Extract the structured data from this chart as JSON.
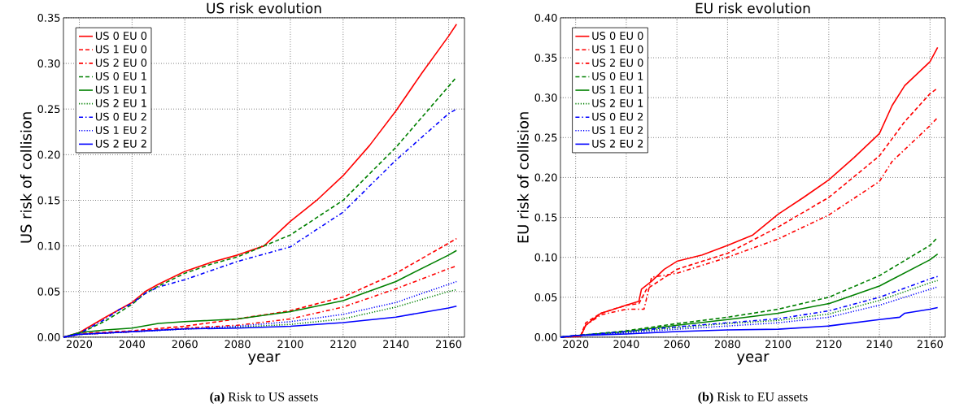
{
  "chart_data": [
    {
      "type": "line",
      "title": "US risk evolution",
      "xlabel": "year",
      "ylabel": "US risk of collision",
      "xlim": [
        2014,
        2166
      ],
      "ylim": [
        0,
        0.35
      ],
      "xticks": [
        2020,
        2040,
        2060,
        2080,
        2100,
        2120,
        2140,
        2160
      ],
      "yticks": [
        {
          "value": 0,
          "label": "0.00"
        },
        0.05,
        {
          "value": 0.1,
          "label": "0.10"
        },
        0.15,
        {
          "value": 0.2,
          "label": "0.20"
        },
        0.25,
        {
          "value": 0.3,
          "label": "0.30"
        },
        0.35
      ],
      "grid": true,
      "legend": "top left",
      "annotations": [
        "**(a)** Risk to US assets"
      ],
      "series": [
        {
          "name": "US 0 EU 0",
          "color": "#ff0000",
          "line_style": "solid",
          "x": [
            2014,
            2020,
            2030,
            2035,
            2040,
            2045,
            2050,
            2060,
            2070,
            2080,
            2090,
            2100,
            2110,
            2120,
            2130,
            2140,
            2150,
            2160,
            2163
          ],
          "values": [
            0,
            0.005,
            0.022,
            0.03,
            0.038,
            0.05,
            0.058,
            0.072,
            0.082,
            0.09,
            0.1,
            0.127,
            0.15,
            0.177,
            0.21,
            0.248,
            0.29,
            0.33,
            0.343
          ]
        },
        {
          "name": "US 1 EU 0",
          "color": "#ff0000",
          "line_style": "dashed",
          "x": [
            2014,
            2020,
            2040,
            2060,
            2080,
            2100,
            2120,
            2140,
            2160,
            2163
          ],
          "values": [
            0,
            0.004,
            0.007,
            0.012,
            0.02,
            0.029,
            0.044,
            0.07,
            0.103,
            0.108
          ]
        },
        {
          "name": "US 2 EU 0",
          "color": "#ff0000",
          "line_style": "dashdot",
          "x": [
            2014,
            2020,
            2040,
            2060,
            2080,
            2100,
            2120,
            2140,
            2160,
            2163
          ],
          "values": [
            0,
            0.003,
            0.006,
            0.01,
            0.013,
            0.02,
            0.033,
            0.053,
            0.075,
            0.078
          ]
        },
        {
          "name": "US 0 EU 1",
          "color": "#008000",
          "line_style": "dashed",
          "x": [
            2014,
            2020,
            2030,
            2035,
            2040,
            2045,
            2050,
            2060,
            2070,
            2080,
            2100,
            2120,
            2140,
            2160,
            2163
          ],
          "values": [
            0,
            0.004,
            0.018,
            0.027,
            0.036,
            0.048,
            0.056,
            0.07,
            0.08,
            0.088,
            0.112,
            0.15,
            0.208,
            0.275,
            0.285
          ]
        },
        {
          "name": "US 1 EU 1",
          "color": "#008000",
          "line_style": "solid",
          "x": [
            2014,
            2020,
            2030,
            2040,
            2050,
            2060,
            2080,
            2100,
            2120,
            2140,
            2160,
            2163
          ],
          "values": [
            0,
            0.005,
            0.008,
            0.01,
            0.015,
            0.017,
            0.02,
            0.028,
            0.04,
            0.061,
            0.09,
            0.095
          ]
        },
        {
          "name": "US 2 EU 1",
          "color": "#008000",
          "line_style": "dotted",
          "x": [
            2014,
            2020,
            2040,
            2060,
            2080,
            2100,
            2120,
            2140,
            2160,
            2163
          ],
          "values": [
            0,
            0.003,
            0.006,
            0.009,
            0.011,
            0.014,
            0.02,
            0.033,
            0.05,
            0.052
          ]
        },
        {
          "name": "US 0 EU 2",
          "color": "#0000ff",
          "line_style": "dashdot",
          "x": [
            2014,
            2020,
            2030,
            2035,
            2040,
            2045,
            2050,
            2060,
            2080,
            2100,
            2120,
            2140,
            2160,
            2163
          ],
          "values": [
            0,
            0.004,
            0.02,
            0.03,
            0.037,
            0.048,
            0.055,
            0.063,
            0.083,
            0.099,
            0.137,
            0.194,
            0.245,
            0.25
          ]
        },
        {
          "name": "US 1 EU 2",
          "color": "#0000ff",
          "line_style": "dotted",
          "x": [
            2014,
            2020,
            2040,
            2060,
            2080,
            2100,
            2120,
            2140,
            2160,
            2163
          ],
          "values": [
            0,
            0.003,
            0.006,
            0.009,
            0.012,
            0.017,
            0.025,
            0.038,
            0.058,
            0.061
          ]
        },
        {
          "name": "US 2 EU 2",
          "color": "#0000ff",
          "line_style": "solid",
          "x": [
            2014,
            2020,
            2040,
            2060,
            2080,
            2100,
            2120,
            2140,
            2160,
            2163
          ],
          "values": [
            0,
            0.003,
            0.006,
            0.009,
            0.01,
            0.012,
            0.016,
            0.022,
            0.032,
            0.034
          ]
        }
      ]
    },
    {
      "type": "line",
      "title": "EU risk evolution",
      "xlabel": "year",
      "ylabel": "EU risk of collision",
      "xlim": [
        2014,
        2166
      ],
      "ylim": [
        0,
        0.4
      ],
      "xticks": [
        2020,
        2040,
        2060,
        2080,
        2100,
        2120,
        2140,
        2160
      ],
      "yticks": [
        {
          "value": 0,
          "label": "0.00"
        },
        0.05,
        {
          "value": 0.1,
          "label": "0.10"
        },
        0.15,
        {
          "value": 0.2,
          "label": "0.20"
        },
        0.25,
        {
          "value": 0.3,
          "label": "0.30"
        },
        0.35,
        {
          "value": 0.4,
          "label": "0.40"
        }
      ],
      "grid": true,
      "legend": "top left",
      "annotations": [
        "**(b)** Risk to EU assets"
      ],
      "series": [
        {
          "name": "US 0 EU 0",
          "color": "#ff0000",
          "line_style": "solid",
          "x": [
            2014,
            2022,
            2024,
            2030,
            2040,
            2045,
            2046,
            2050,
            2055,
            2060,
            2070,
            2080,
            2090,
            2100,
            2110,
            2120,
            2130,
            2140,
            2145,
            2150,
            2160,
            2163
          ],
          "values": [
            0,
            0.001,
            0.015,
            0.03,
            0.04,
            0.045,
            0.06,
            0.07,
            0.085,
            0.095,
            0.103,
            0.115,
            0.128,
            0.154,
            0.175,
            0.197,
            0.225,
            0.255,
            0.29,
            0.315,
            0.345,
            0.363
          ]
        },
        {
          "name": "US 1 EU 0",
          "color": "#ff0000",
          "line_style": "dashed",
          "x": [
            2014,
            2022,
            2024,
            2030,
            2040,
            2045,
            2048,
            2060,
            2080,
            2100,
            2120,
            2140,
            2150,
            2160,
            2163
          ],
          "values": [
            0,
            0.002,
            0.018,
            0.03,
            0.04,
            0.042,
            0.06,
            0.085,
            0.105,
            0.138,
            0.175,
            0.227,
            0.27,
            0.305,
            0.312
          ]
        },
        {
          "name": "US 2 EU 0",
          "color": "#ff0000",
          "line_style": "dashdot",
          "x": [
            2014,
            2022,
            2024,
            2030,
            2040,
            2047,
            2050,
            2060,
            2080,
            2100,
            2120,
            2140,
            2145,
            2160,
            2163
          ],
          "values": [
            0,
            0.002,
            0.015,
            0.028,
            0.035,
            0.035,
            0.075,
            0.08,
            0.1,
            0.123,
            0.153,
            0.195,
            0.22,
            0.265,
            0.275
          ]
        },
        {
          "name": "US 0 EU 1",
          "color": "#008000",
          "line_style": "dashed",
          "x": [
            2014,
            2020,
            2040,
            2060,
            2080,
            2100,
            2120,
            2140,
            2160,
            2163
          ],
          "values": [
            0,
            0.002,
            0.008,
            0.017,
            0.025,
            0.035,
            0.05,
            0.077,
            0.115,
            0.125
          ]
        },
        {
          "name": "US 1 EU 1",
          "color": "#008000",
          "line_style": "solid",
          "x": [
            2014,
            2020,
            2040,
            2060,
            2080,
            2100,
            2120,
            2140,
            2160,
            2163
          ],
          "values": [
            0,
            0.002,
            0.007,
            0.015,
            0.022,
            0.03,
            0.042,
            0.064,
            0.097,
            0.104
          ]
        },
        {
          "name": "US 2 EU 1",
          "color": "#008000",
          "line_style": "dotted",
          "x": [
            2014,
            2020,
            2040,
            2060,
            2080,
            2100,
            2120,
            2140,
            2160,
            2163
          ],
          "values": [
            0,
            0.002,
            0.006,
            0.012,
            0.017,
            0.021,
            0.029,
            0.046,
            0.068,
            0.071
          ]
        },
        {
          "name": "US 0 EU 2",
          "color": "#0000ff",
          "line_style": "dashdot",
          "x": [
            2014,
            2020,
            2040,
            2060,
            2080,
            2100,
            2120,
            2140,
            2160,
            2163
          ],
          "values": [
            0,
            0.002,
            0.007,
            0.013,
            0.018,
            0.023,
            0.033,
            0.05,
            0.073,
            0.076
          ]
        },
        {
          "name": "US 1 EU 2",
          "color": "#0000ff",
          "line_style": "dotted",
          "x": [
            2014,
            2020,
            2040,
            2060,
            2080,
            2100,
            2120,
            2140,
            2160,
            2163
          ],
          "values": [
            0,
            0.002,
            0.005,
            0.01,
            0.014,
            0.018,
            0.025,
            0.04,
            0.06,
            0.063
          ]
        },
        {
          "name": "US 2 EU 2",
          "color": "#0000ff",
          "line_style": "solid",
          "x": [
            2014,
            2020,
            2040,
            2060,
            2080,
            2100,
            2120,
            2140,
            2148,
            2150,
            2160,
            2163
          ],
          "values": [
            0,
            0.002,
            0.004,
            0.007,
            0.009,
            0.01,
            0.014,
            0.022,
            0.025,
            0.03,
            0.035,
            0.037
          ]
        }
      ]
    }
  ]
}
